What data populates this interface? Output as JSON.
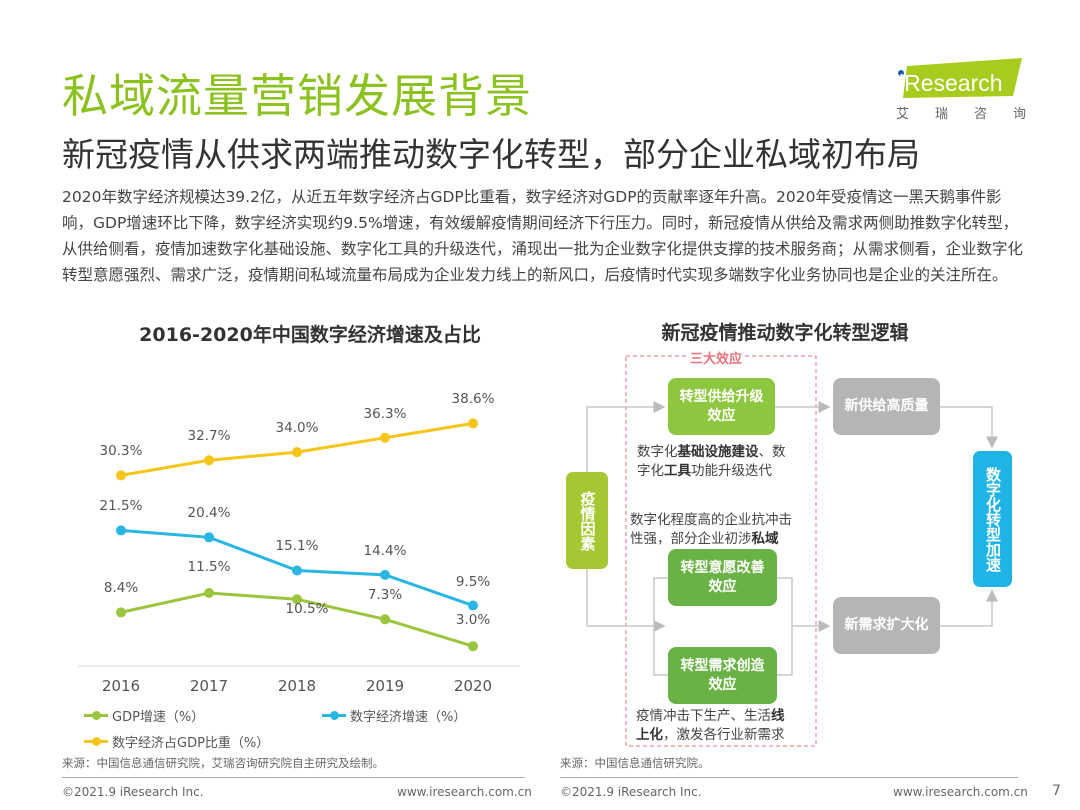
{
  "header": {
    "title": "私域流量营销发展背景",
    "subtitle": "新冠疫情从供求两端推动数字化转型，部分企业私域初布局",
    "logo_text": "iResearch",
    "logo_cn": [
      "艾",
      "瑞",
      "咨",
      "询"
    ],
    "brand_color": "#8cc220"
  },
  "intro": "2020年数字经济规模达39.2亿，从近五年数字经济占GDP比重看，数字经济对GDP的贡献率逐年升高。2020年受疫情这一黑天鹅事件影响，GDP增速环比下降，数字经济实现约9.5%增速，有效缓解疫情期间经济下行压力。同时，新冠疫情从供给及需求两侧助推数字化转型，从供给侧看，疫情加速数字化基础设施、数字化工具的升级迭代，涌现出一批为企业数字化提供支撑的技术服务商；从需求侧看，企业数字化转型意愿强烈、需求广泛，疫情期间私域流量布局成为企业发力线上的新风口，后疫情时代实现多端数字化业务协同也是企业的关注所在。",
  "chart_data": {
    "type": "line",
    "title": "2016-2020年中国数字经济增速及占比",
    "categories": [
      "2016",
      "2017",
      "2018",
      "2019",
      "2020"
    ],
    "ylim": [
      0,
      45
    ],
    "grid": false,
    "legend": "bottom",
    "series": [
      {
        "name": "GDP增速（%）",
        "color": "#9bc53d",
        "values": [
          8.4,
          11.5,
          10.5,
          7.3,
          3.0
        ],
        "labels": [
          "8.4%",
          "11.5%",
          "10.5%",
          "7.3%",
          "3.0%"
        ]
      },
      {
        "name": "数字经济增速（%）",
        "color": "#29b6e3",
        "values": [
          21.5,
          20.4,
          15.1,
          14.4,
          9.5
        ],
        "labels": [
          "21.5%",
          "20.4%",
          "15.1%",
          "14.4%",
          "9.5%"
        ]
      },
      {
        "name": "数字经济占GDP比重（%）",
        "color": "#f5c518",
        "values": [
          30.3,
          32.7,
          34.0,
          36.3,
          38.6
        ],
        "labels": [
          "30.3%",
          "32.7%",
          "34.0%",
          "36.3%",
          "38.6%"
        ]
      }
    ],
    "source": "来源：中国信息通信研究院，艾瑞咨询研究院自主研究及绘制。"
  },
  "diagram": {
    "title": "新冠疫情推动数字化转型逻辑",
    "group_label": "三大效应",
    "cause": "疫情因素",
    "effects": [
      "转型供给升级效应",
      "转型意愿改善效应",
      "转型需求创造效应"
    ],
    "notes": [
      [
        "数字化",
        "基础设施建设",
        "、数",
        "字化",
        "工具",
        "功能升级迭代"
      ],
      [
        "数字化程度高的企业抗冲击",
        "性强，部分企业初涉",
        "私域"
      ],
      [
        "疫情冲击下生产、生活",
        "线",
        "上化",
        "，激发各行业新需求"
      ]
    ],
    "outcomes": [
      "新供给高质量",
      "新需求扩大化"
    ],
    "result": "数字化转型加速",
    "source": "来源：中国信息通信研究院。"
  },
  "footer": {
    "copyright": "©2021.9 iResearch Inc.",
    "url": "www.iresearch.com.cn",
    "page": "7"
  }
}
